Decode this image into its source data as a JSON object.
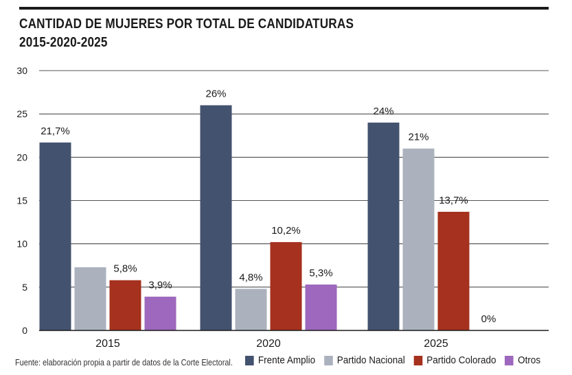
{
  "title_lines": [
    "CANTIDAD DE MUJERES POR TOTAL DE CANDIDATURAS",
    "2015-2020-2025"
  ],
  "chart_data": {
    "type": "bar",
    "categories": [
      "2015",
      "2020",
      "2025"
    ],
    "series": [
      {
        "name": "Frente Amplio",
        "color": "#43526f",
        "values": [
          21.7,
          26,
          24
        ],
        "labels": [
          "21,7%",
          "26%",
          "24%"
        ]
      },
      {
        "name": "Partido Nacional",
        "color": "#abb2be",
        "values": [
          7.3,
          4.8,
          21
        ],
        "labels": [
          "",
          "4,8%",
          "21%"
        ]
      },
      {
        "name": "Partido Colorado",
        "color": "#a5311e",
        "values": [
          5.8,
          10.2,
          13.7
        ],
        "labels": [
          "5,8%",
          "10,2%",
          "13,7%"
        ]
      },
      {
        "name": "Otros",
        "color": "#9d68bd",
        "values": [
          3.9,
          5.3,
          0
        ],
        "labels": [
          "3,9%",
          "5,3%",
          "0%"
        ]
      }
    ],
    "yticks": [
      0,
      5,
      10,
      15,
      20,
      25,
      30
    ],
    "ylim": [
      0,
      30
    ],
    "grid": true,
    "legend": "bottom"
  },
  "footer": {
    "source": "Fuente: elaboración propia a partir de datos de la Corte Electoral."
  }
}
